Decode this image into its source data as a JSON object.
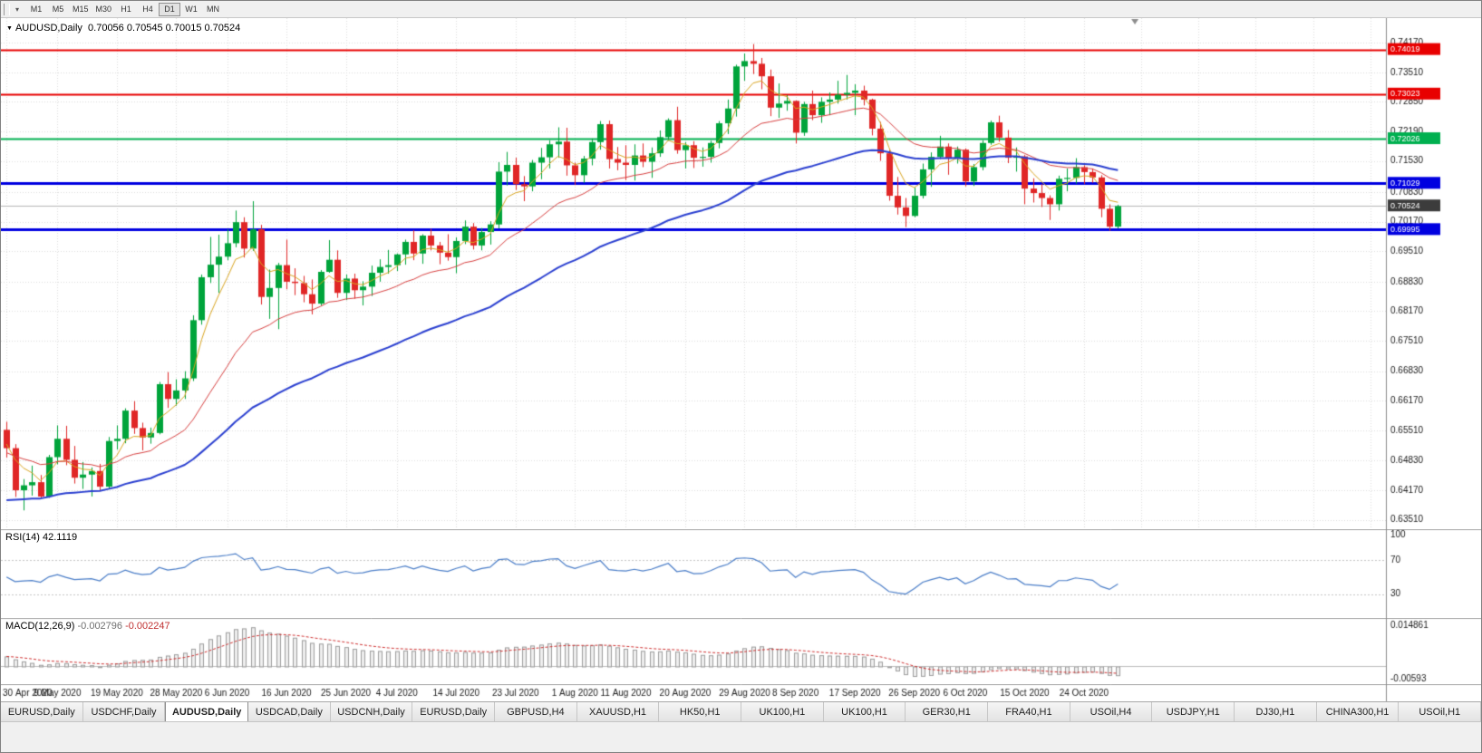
{
  "toolbar": {
    "periods": [
      "M1",
      "M5",
      "M15",
      "M30",
      "H1",
      "H4",
      "D1",
      "W1",
      "MN"
    ],
    "active_period": "D1"
  },
  "chart_data": {
    "type": "candlestick",
    "symbol": "AUDUSD",
    "period": "Daily",
    "title_readout": "AUDUSD,Daily",
    "ohlc_readout": "0.70056 0.70545 0.70015 0.70524",
    "price_range": {
      "min": 0.633,
      "max": 0.7472
    },
    "price_ticks": [
      "0.74170",
      "0.73510",
      "0.72850",
      "0.72190",
      "0.71530",
      "0.70830",
      "0.70170",
      "0.69510",
      "0.68830",
      "0.68170",
      "0.67510",
      "0.66830",
      "0.66170",
      "0.65510",
      "0.64830",
      "0.64170",
      "0.63510"
    ],
    "hlines": [
      {
        "price": 0.74019,
        "label": "0.74019",
        "color": "#e80000",
        "width": 2
      },
      {
        "price": 0.73023,
        "label": "0.73023",
        "color": "#e80000",
        "width": 2
      },
      {
        "price": 0.72026,
        "label": "0.72026",
        "color": "#00b050",
        "width": 2
      },
      {
        "price": 0.71029,
        "label": "0.71029",
        "color": "#0000e0",
        "width": 3
      },
      {
        "price": 0.69995,
        "label": "0.69995",
        "color": "#0000e0",
        "width": 3
      }
    ],
    "current_price": {
      "value": 0.70524,
      "label": "0.70524",
      "badge_color": "#3c3c3c",
      "line_color": "#b5b5b5"
    },
    "up_color": "#00a43b",
    "down_color": "#e02626",
    "shift_marker_slot": 133,
    "date_labels": [
      {
        "text": "30 Apr 2020",
        "slot": 0
      },
      {
        "text": "9 May 2020",
        "slot": 6
      },
      {
        "text": "19 May 2020",
        "slot": 13
      },
      {
        "text": "28 May 2020",
        "slot": 20
      },
      {
        "text": "6 Jun 2020",
        "slot": 26
      },
      {
        "text": "16 Jun 2020",
        "slot": 33
      },
      {
        "text": "25 Jun 2020",
        "slot": 40
      },
      {
        "text": "4 Jul 2020",
        "slot": 46
      },
      {
        "text": "14 Jul 2020",
        "slot": 53
      },
      {
        "text": "23 Jul 2020",
        "slot": 60
      },
      {
        "text": "1 Aug 2020",
        "slot": 67
      },
      {
        "text": "11 Aug 2020",
        "slot": 73
      },
      {
        "text": "20 Aug 2020",
        "slot": 80
      },
      {
        "text": "29 Aug 2020",
        "slot": 87
      },
      {
        "text": "8 Sep 2020",
        "slot": 93
      },
      {
        "text": "17 Sep 2020",
        "slot": 100
      },
      {
        "text": "26 Sep 2020",
        "slot": 107
      },
      {
        "text": "6 Oct 2020",
        "slot": 113
      },
      {
        "text": "15 Oct 2020",
        "slot": 120
      },
      {
        "text": "24 Oct 2020",
        "slot": 127
      }
    ],
    "moving_averages": [
      {
        "period": 5,
        "type": "ema",
        "color": "#d9a51f",
        "width": 1,
        "seed": 0.6525
      },
      {
        "period": 20,
        "type": "ema",
        "color": "#d84040",
        "width": 1,
        "seed": 0.65
      },
      {
        "period": 50,
        "type": "ema",
        "color": "#2a3fd0",
        "width": 2,
        "seed": 0.639
      }
    ],
    "candles": [
      [
        0.6552,
        0.657,
        0.649,
        0.6511
      ],
      [
        0.6511,
        0.652,
        0.6402,
        0.6417
      ],
      [
        0.6417,
        0.6442,
        0.6372,
        0.6428
      ],
      [
        0.6428,
        0.6472,
        0.6405,
        0.6435
      ],
      [
        0.6435,
        0.6451,
        0.6398,
        0.6403
      ],
      [
        0.6403,
        0.6496,
        0.64,
        0.6491
      ],
      [
        0.6491,
        0.6562,
        0.6475,
        0.6532
      ],
      [
        0.6532,
        0.6561,
        0.6473,
        0.6485
      ],
      [
        0.6485,
        0.6516,
        0.6432,
        0.6445
      ],
      [
        0.6445,
        0.648,
        0.642,
        0.6452
      ],
      [
        0.6452,
        0.6468,
        0.6403,
        0.646
      ],
      [
        0.646,
        0.6476,
        0.6417,
        0.6425
      ],
      [
        0.6425,
        0.6536,
        0.642,
        0.6527
      ],
      [
        0.6527,
        0.6562,
        0.6508,
        0.6532
      ],
      [
        0.6532,
        0.66,
        0.6522,
        0.6595
      ],
      [
        0.6595,
        0.6616,
        0.6543,
        0.6556
      ],
      [
        0.6556,
        0.6568,
        0.6506,
        0.6535
      ],
      [
        0.6535,
        0.6557,
        0.6521,
        0.6545
      ],
      [
        0.6545,
        0.6659,
        0.6542,
        0.6654
      ],
      [
        0.6654,
        0.6681,
        0.6601,
        0.6621
      ],
      [
        0.6621,
        0.6665,
        0.6606,
        0.664
      ],
      [
        0.664,
        0.6683,
        0.6621,
        0.6667
      ],
      [
        0.6667,
        0.6808,
        0.6661,
        0.6797
      ],
      [
        0.6797,
        0.6899,
        0.6787,
        0.6893
      ],
      [
        0.6893,
        0.6983,
        0.688,
        0.6921
      ],
      [
        0.6921,
        0.6988,
        0.6858,
        0.6939
      ],
      [
        0.6939,
        0.7,
        0.6931,
        0.6969
      ],
      [
        0.6969,
        0.7042,
        0.696,
        0.7016
      ],
      [
        0.7016,
        0.7027,
        0.6937,
        0.6957
      ],
      [
        0.6957,
        0.7063,
        0.6952,
        0.7
      ],
      [
        0.7,
        0.701,
        0.6832,
        0.6849
      ],
      [
        0.6849,
        0.691,
        0.68,
        0.6869
      ],
      [
        0.6869,
        0.6925,
        0.6777,
        0.692
      ],
      [
        0.692,
        0.6977,
        0.6866,
        0.6883
      ],
      [
        0.6883,
        0.6913,
        0.6853,
        0.688
      ],
      [
        0.688,
        0.6896,
        0.6837,
        0.6855
      ],
      [
        0.6855,
        0.6888,
        0.681,
        0.6834
      ],
      [
        0.6834,
        0.6909,
        0.683,
        0.6905
      ],
      [
        0.6905,
        0.6976,
        0.6903,
        0.6932
      ],
      [
        0.6932,
        0.6953,
        0.6847,
        0.6858
      ],
      [
        0.6858,
        0.6899,
        0.6842,
        0.689
      ],
      [
        0.689,
        0.6901,
        0.6845,
        0.6864
      ],
      [
        0.6864,
        0.6884,
        0.683,
        0.6872
      ],
      [
        0.6872,
        0.6919,
        0.6851,
        0.6903
      ],
      [
        0.6903,
        0.6933,
        0.6883,
        0.6916
      ],
      [
        0.6916,
        0.6954,
        0.6901,
        0.692
      ],
      [
        0.692,
        0.6946,
        0.6907,
        0.6944
      ],
      [
        0.6944,
        0.6977,
        0.6921,
        0.6972
      ],
      [
        0.6972,
        0.6998,
        0.6931,
        0.6946
      ],
      [
        0.6946,
        0.6989,
        0.6923,
        0.6986
      ],
      [
        0.6986,
        0.7001,
        0.6953,
        0.6964
      ],
      [
        0.6964,
        0.6972,
        0.6922,
        0.6948
      ],
      [
        0.6948,
        0.6989,
        0.693,
        0.6938
      ],
      [
        0.6938,
        0.6982,
        0.6902,
        0.6974
      ],
      [
        0.6974,
        0.702,
        0.6967,
        0.7006
      ],
      [
        0.7006,
        0.7014,
        0.6955,
        0.6964
      ],
      [
        0.6964,
        0.7003,
        0.6953,
        0.6994
      ],
      [
        0.6994,
        0.7018,
        0.6966,
        0.7011
      ],
      [
        0.7011,
        0.715,
        0.7002,
        0.7129
      ],
      [
        0.7129,
        0.7173,
        0.7098,
        0.7144
      ],
      [
        0.7144,
        0.716,
        0.7088,
        0.7101
      ],
      [
        0.7101,
        0.7119,
        0.7063,
        0.7096
      ],
      [
        0.7096,
        0.7155,
        0.7085,
        0.7149
      ],
      [
        0.7149,
        0.7182,
        0.7112,
        0.7161
      ],
      [
        0.7161,
        0.7199,
        0.7136,
        0.719
      ],
      [
        0.719,
        0.7228,
        0.716,
        0.7196
      ],
      [
        0.7196,
        0.7227,
        0.712,
        0.7143
      ],
      [
        0.7143,
        0.7149,
        0.7099,
        0.7121
      ],
      [
        0.7121,
        0.7164,
        0.7104,
        0.7158
      ],
      [
        0.7158,
        0.7203,
        0.7143,
        0.7195
      ],
      [
        0.7195,
        0.7242,
        0.7178,
        0.7235
      ],
      [
        0.7235,
        0.7243,
        0.7136,
        0.7157
      ],
      [
        0.7157,
        0.7184,
        0.7132,
        0.7149
      ],
      [
        0.7149,
        0.7188,
        0.711,
        0.7144
      ],
      [
        0.7144,
        0.719,
        0.7109,
        0.7165
      ],
      [
        0.7165,
        0.7192,
        0.7139,
        0.7151
      ],
      [
        0.7151,
        0.7183,
        0.7115,
        0.717
      ],
      [
        0.717,
        0.7221,
        0.7162,
        0.7206
      ],
      [
        0.7206,
        0.7248,
        0.7198,
        0.7244
      ],
      [
        0.7244,
        0.7274,
        0.7169,
        0.7177
      ],
      [
        0.7177,
        0.7195,
        0.7136,
        0.7188
      ],
      [
        0.7188,
        0.7197,
        0.7137,
        0.716
      ],
      [
        0.716,
        0.7183,
        0.714,
        0.7162
      ],
      [
        0.7162,
        0.7198,
        0.7149,
        0.7193
      ],
      [
        0.7193,
        0.7242,
        0.7181,
        0.7237
      ],
      [
        0.7237,
        0.729,
        0.7213,
        0.727
      ],
      [
        0.727,
        0.7368,
        0.7252,
        0.7364
      ],
      [
        0.7364,
        0.7393,
        0.7332,
        0.7376
      ],
      [
        0.7376,
        0.7414,
        0.7347,
        0.737
      ],
      [
        0.737,
        0.7383,
        0.7313,
        0.7342
      ],
      [
        0.7342,
        0.7357,
        0.7253,
        0.7272
      ],
      [
        0.7272,
        0.7326,
        0.7249,
        0.7281
      ],
      [
        0.7281,
        0.73,
        0.7265,
        0.7287
      ],
      [
        0.7287,
        0.7288,
        0.7192,
        0.7216
      ],
      [
        0.7216,
        0.7285,
        0.7209,
        0.728
      ],
      [
        0.728,
        0.731,
        0.7244,
        0.7255
      ],
      [
        0.7255,
        0.7295,
        0.7238,
        0.7285
      ],
      [
        0.7285,
        0.7306,
        0.7255,
        0.729
      ],
      [
        0.729,
        0.7332,
        0.7281,
        0.7301
      ],
      [
        0.7301,
        0.7345,
        0.729,
        0.7305
      ],
      [
        0.7305,
        0.7324,
        0.7255,
        0.731
      ],
      [
        0.731,
        0.7321,
        0.7277,
        0.729
      ],
      [
        0.729,
        0.7292,
        0.721,
        0.7225
      ],
      [
        0.7225,
        0.724,
        0.7153,
        0.717
      ],
      [
        0.717,
        0.7177,
        0.7064,
        0.7075
      ],
      [
        0.7075,
        0.7117,
        0.7033,
        0.7049
      ],
      [
        0.7049,
        0.707,
        0.7005,
        0.703
      ],
      [
        0.703,
        0.7093,
        0.7027,
        0.7075
      ],
      [
        0.7075,
        0.7147,
        0.7069,
        0.7134
      ],
      [
        0.7134,
        0.7172,
        0.7095,
        0.7162
      ],
      [
        0.7162,
        0.7209,
        0.7157,
        0.7185
      ],
      [
        0.7185,
        0.7192,
        0.7122,
        0.7159
      ],
      [
        0.7159,
        0.7185,
        0.7147,
        0.7178
      ],
      [
        0.7178,
        0.7181,
        0.7096,
        0.7107
      ],
      [
        0.7107,
        0.7146,
        0.7097,
        0.7139
      ],
      [
        0.7139,
        0.7199,
        0.7132,
        0.7193
      ],
      [
        0.7193,
        0.7243,
        0.7189,
        0.7239
      ],
      [
        0.7239,
        0.7254,
        0.7196,
        0.7205
      ],
      [
        0.7205,
        0.7222,
        0.7148,
        0.716
      ],
      [
        0.716,
        0.7183,
        0.7129,
        0.7163
      ],
      [
        0.7163,
        0.7166,
        0.7056,
        0.7091
      ],
      [
        0.7091,
        0.7114,
        0.706,
        0.7081
      ],
      [
        0.7081,
        0.7101,
        0.705,
        0.707
      ],
      [
        0.707,
        0.7076,
        0.7021,
        0.7056
      ],
      [
        0.7056,
        0.712,
        0.7042,
        0.7113
      ],
      [
        0.7113,
        0.7136,
        0.7085,
        0.7115
      ],
      [
        0.7115,
        0.7159,
        0.7102,
        0.7139
      ],
      [
        0.7139,
        0.7143,
        0.7101,
        0.7128
      ],
      [
        0.7128,
        0.7136,
        0.7104,
        0.7116
      ],
      [
        0.7116,
        0.7121,
        0.7027,
        0.7046
      ],
      [
        0.7046,
        0.7056,
        0.6997,
        0.7006
      ],
      [
        0.7006,
        0.7055,
        0.7002,
        0.7052
      ]
    ],
    "indicators": {
      "rsi": {
        "label": "RSI(14)",
        "value_readout": "42.1119",
        "period": 14,
        "levels": [
          100,
          70,
          30
        ],
        "range": [
          2,
          106
        ],
        "color": "#4b7ec8",
        "seed_avg": 0.003
      },
      "macd": {
        "label": "MACD(12,26,9)",
        "value_main": "-0.002796",
        "value_signal": "-0.002247",
        "fast": 12,
        "slow": 26,
        "signal": 9,
        "axis_max_label": "0.014861",
        "axis_min_label": "-0.00593",
        "range": [
          -0.0063,
          0.0165
        ],
        "hist_fill": "#efefef",
        "hist_stroke": "#9e9e9e",
        "signal_color": "#d03030",
        "seed_offset_slow": -0.0035
      }
    }
  },
  "tabs": [
    {
      "label": "EURUSD,Daily",
      "active": false
    },
    {
      "label": "USDCHF,Daily",
      "active": false
    },
    {
      "label": "AUDUSD,Daily",
      "active": true
    },
    {
      "label": "USDCAD,Daily",
      "active": false
    },
    {
      "label": "USDCNH,Daily",
      "active": false
    },
    {
      "label": "EURUSD,Daily",
      "active": false
    },
    {
      "label": "GBPUSD,H4",
      "active": false
    },
    {
      "label": "XAUUSD,H1",
      "active": false
    },
    {
      "label": "HK50,H1",
      "active": false
    },
    {
      "label": "UK100,H1",
      "active": false
    },
    {
      "label": "UK100,H1",
      "active": false
    },
    {
      "label": "GER30,H1",
      "active": false
    },
    {
      "label": "FRA40,H1",
      "active": false
    },
    {
      "label": "USOil,H4",
      "active": false
    },
    {
      "label": "USDJPY,H1",
      "active": false
    },
    {
      "label": "DJ30,H1",
      "active": false
    },
    {
      "label": "CHINA300,H1",
      "active": false
    },
    {
      "label": "USOil,H1",
      "active": false
    }
  ]
}
